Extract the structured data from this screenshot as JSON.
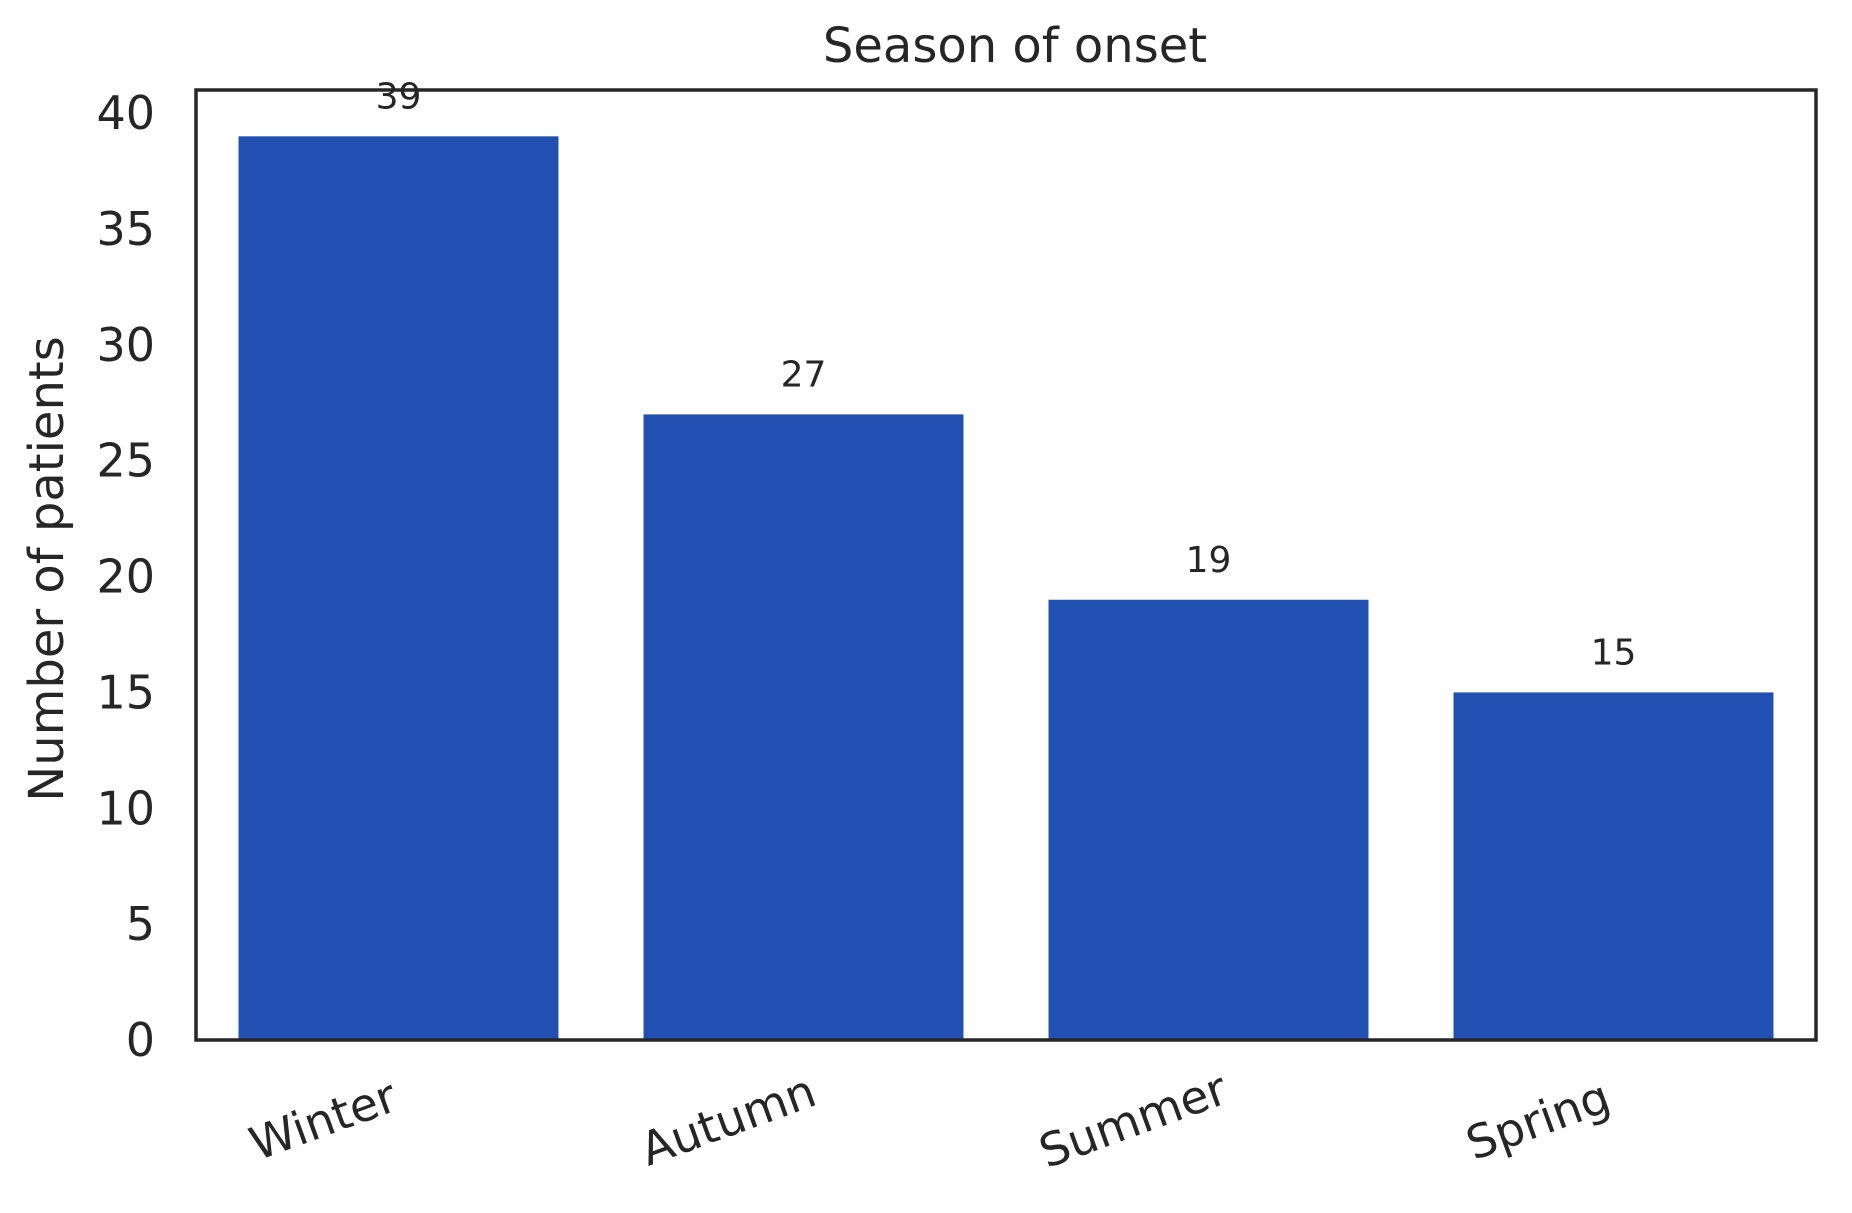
{
  "chart_data": {
    "type": "bar",
    "title": "Season of onset",
    "xlabel": "",
    "ylabel": "Number of patients",
    "categories": [
      "Winter",
      "Autumn",
      "Summer",
      "Spring"
    ],
    "values": [
      39,
      27,
      19,
      15
    ],
    "data_labels": [
      "39",
      "27",
      "19",
      "15"
    ],
    "ylim": [
      0,
      41
    ],
    "yticks": [
      0,
      5,
      10,
      15,
      20,
      25,
      30,
      35,
      40
    ],
    "ytick_labels": [
      "0",
      "5",
      "10",
      "15",
      "20",
      "25",
      "30",
      "35",
      "40"
    ],
    "grid": false,
    "legend": "none",
    "bar_color": "#2150b2",
    "axis_color": "#262626"
  }
}
